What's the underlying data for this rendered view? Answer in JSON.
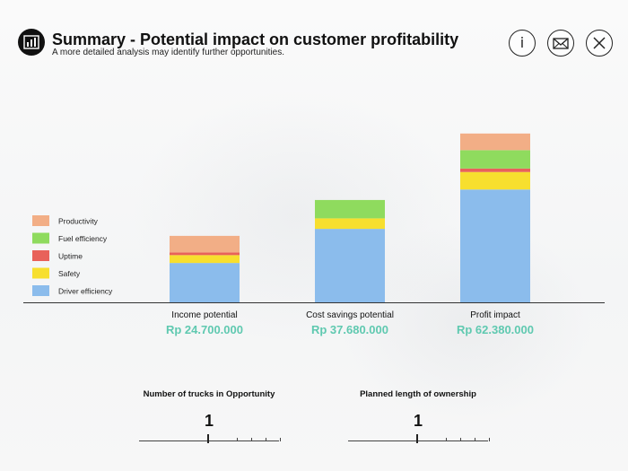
{
  "header": {
    "title": "Summary - Potential impact on customer profitability",
    "subtitle": "A more detailed analysis may identify further opportunities."
  },
  "colors": {
    "productivity": "#F2AE86",
    "fuel_efficiency": "#8FDB5E",
    "uptime": "#E8625A",
    "safety": "#F7DF2E",
    "driver_efficiency": "#8BBCEC",
    "value_text": "#5FC9B0"
  },
  "chart_data": {
    "type": "bar",
    "stacked": true,
    "categories": [
      "Income potential",
      "Cost savings potential",
      "Profit impact"
    ],
    "totals": [
      "Rp 24.700.000",
      "Rp 37.680.000",
      "Rp 62.380.000"
    ],
    "ylim": [
      0,
      200
    ],
    "series": [
      {
        "name": "Driver efficiency",
        "key": "driver_efficiency",
        "values": [
          45,
          84,
          129
        ]
      },
      {
        "name": "Safety",
        "key": "safety",
        "values": [
          9,
          12,
          20
        ]
      },
      {
        "name": "Uptime",
        "key": "uptime",
        "values": [
          3,
          0,
          4
        ]
      },
      {
        "name": "Fuel efficiency",
        "key": "fuel_efficiency",
        "values": [
          0,
          21,
          21
        ]
      },
      {
        "name": "Productivity",
        "key": "productivity",
        "values": [
          19,
          0,
          19
        ]
      }
    ],
    "legend_order": [
      "productivity",
      "fuel_efficiency",
      "uptime",
      "safety",
      "driver_efficiency"
    ]
  },
  "controls": {
    "trucks": {
      "label": "Number of trucks in Opportunity",
      "value": "1"
    },
    "ownership": {
      "label": "Planned length of ownership",
      "value": "1"
    }
  }
}
